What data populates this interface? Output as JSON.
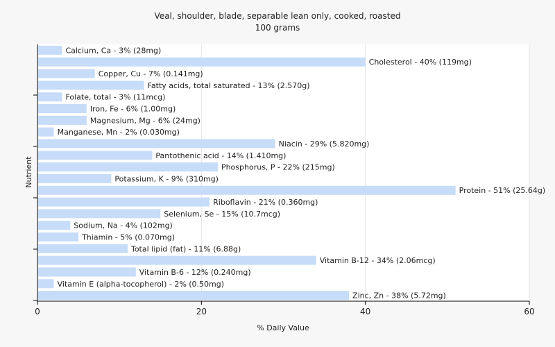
{
  "chart_data": {
    "type": "bar",
    "orientation": "horizontal",
    "title": "Veal, shoulder, blade, separable lean only, cooked, roasted",
    "subtitle": "100 grams",
    "xlabel": "% Daily Value",
    "ylabel": "Nutrient",
    "xlim": [
      0,
      60
    ],
    "xticks": [
      0,
      20,
      40,
      60
    ],
    "grid": true,
    "bar_color": "#c6dcf8",
    "categories": [
      "Calcium, Ca",
      "Cholesterol",
      "Copper, Cu",
      "Fatty acids, total saturated",
      "Folate, total",
      "Iron, Fe",
      "Magnesium, Mg",
      "Manganese, Mn",
      "Niacin",
      "Pantothenic acid",
      "Phosphorus, P",
      "Potassium, K",
      "Protein",
      "Riboflavin",
      "Selenium, Se",
      "Sodium, Na",
      "Thiamin",
      "Total lipid (fat)",
      "Vitamin B-12",
      "Vitamin B-6",
      "Vitamin E (alpha-tocopherol)",
      "Zinc, Zn"
    ],
    "values": [
      3,
      40,
      7,
      13,
      3,
      6,
      6,
      2,
      29,
      14,
      22,
      9,
      51,
      21,
      15,
      4,
      5,
      11,
      34,
      12,
      2,
      38
    ],
    "labels": [
      "Calcium, Ca - 3% (28mg)",
      "Cholesterol - 40% (119mg)",
      "Copper, Cu - 7% (0.141mg)",
      "Fatty acids, total saturated - 13% (2.570g)",
      "Folate, total - 3% (11mcg)",
      "Iron, Fe - 6% (1.00mg)",
      "Magnesium, Mg - 6% (24mg)",
      "Manganese, Mn - 2% (0.030mg)",
      "Niacin - 29% (5.820mg)",
      "Pantothenic acid - 14% (1.410mg)",
      "Phosphorus, P - 22% (215mg)",
      "Potassium, K - 9% (310mg)",
      "Protein - 51% (25.64g)",
      "Riboflavin - 21% (0.360mg)",
      "Selenium, Se - 15% (10.7mcg)",
      "Sodium, Na - 4% (102mg)",
      "Thiamin - 5% (0.070mg)",
      "Total lipid (fat) - 11% (6.88g)",
      "Vitamin B-12 - 34% (2.06mcg)",
      "Vitamin B-6 - 12% (0.240mg)",
      "Vitamin E (alpha-tocopherol) - 2% (0.50mg)",
      "Zinc, Zn - 38% (5.72mg)"
    ]
  }
}
